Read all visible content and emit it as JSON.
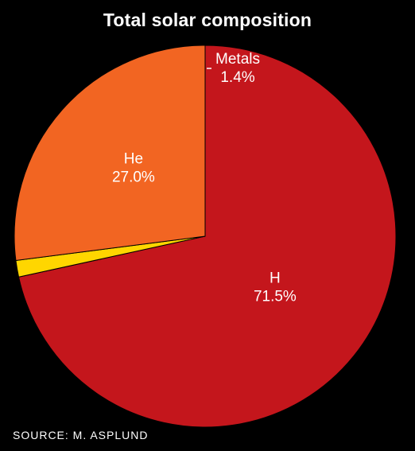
{
  "chart_data": {
    "type": "pie",
    "title": "Total solar composition",
    "slices": [
      {
        "label": "H",
        "value": 71.5,
        "value_label": "71.5%",
        "color": "#c4161c"
      },
      {
        "label": "Metals",
        "value": 1.4,
        "value_label": "1.4%",
        "color": "#ffd600"
      },
      {
        "label": "He",
        "value": 27.0,
        "value_label": "27.0%",
        "color": "#f26522"
      }
    ],
    "source": "SOURCE: M. ASPLUND"
  },
  "colors": {
    "background": "#000000",
    "text": "#ffffff",
    "slice_edge": "#000000"
  }
}
